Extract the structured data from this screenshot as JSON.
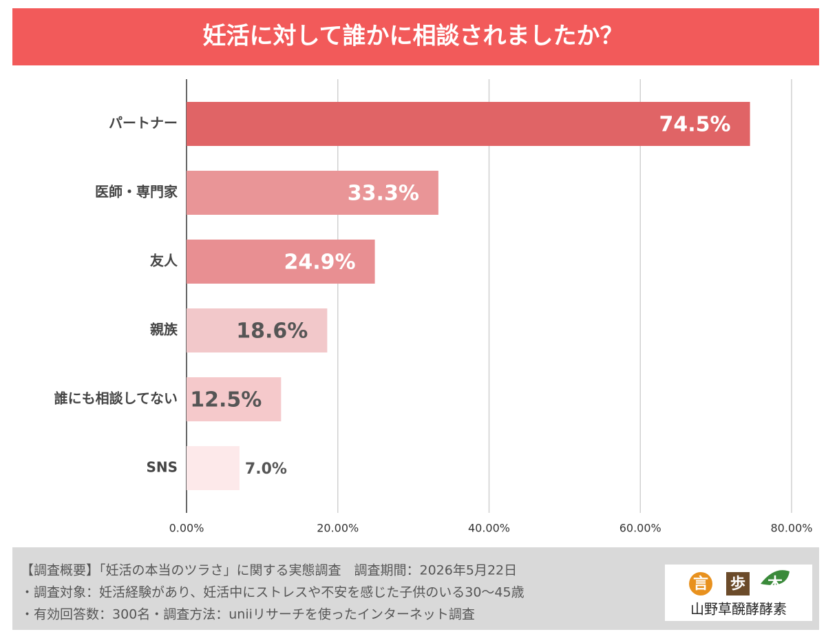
{
  "chart_data": {
    "type": "barh",
    "title": "妊活に対して誰かに相談されましたか？",
    "categories": [
      "パートナー",
      "医師・専門家",
      "友人",
      "親族",
      "誰にも相談してない",
      "SNS"
    ],
    "values": [
      74.5,
      33.3,
      24.9,
      18.6,
      12.5,
      7.0
    ],
    "value_labels": [
      "74.5%",
      "33.3%",
      "24.9%",
      "18.6%",
      "12.5%",
      "7.0%"
    ],
    "colors": [
      "#e06466",
      "#e99597",
      "#e88f92",
      "#f2c8ca",
      "#f5c9cb",
      "#fde9ea"
    ],
    "value_label_colors": [
      "#ffffff",
      "#ffffff",
      "#ffffff",
      "#555555",
      "#555555",
      "#555555"
    ],
    "xlim": [
      0,
      80
    ],
    "xticks": [
      {
        "value": 0,
        "label": "0.00%"
      },
      {
        "value": 20,
        "label": "20.00%"
      },
      {
        "value": 40,
        "label": "40.00%"
      },
      {
        "value": 60,
        "label": "60.00%"
      },
      {
        "value": 80,
        "label": "80.00%"
      }
    ],
    "grid": true
  },
  "footer": {
    "lines": [
      "【調査概要】「妊活の本当のツラさ」に関する実態調査　調査期間：2026年5月22日",
      "・調査対象：妊活経験があり、妊活中にストレスや不安を感じた子供のいる30〜45歳",
      "・有効回答数：300名・調査方法：uniiリサーチを使ったインターネット調査"
    ]
  },
  "logo": {
    "marks": [
      "言",
      "歩",
      "木"
    ],
    "name": "山野草醗酵酵素"
  }
}
